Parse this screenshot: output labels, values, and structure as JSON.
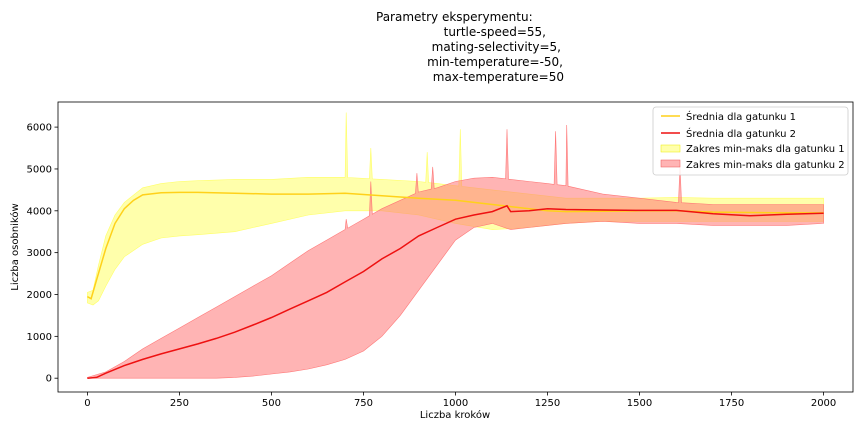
{
  "chart_data": {
    "type": "line",
    "title_lines": [
      "Parametry eksperymentu:",
      "turtle-speed=55,",
      "mating-selectivity=5,",
      "min-temperature=-50,",
      "max-temperature=50"
    ],
    "xlabel": "Liczba kroków",
    "ylabel": "Liczba osobników",
    "xlim": [
      -80,
      2080
    ],
    "ylim": [
      -330,
      6600
    ],
    "xticks": [
      0,
      250,
      500,
      750,
      1000,
      1250,
      1500,
      1750,
      2000
    ],
    "yticks": [
      0,
      1000,
      2000,
      3000,
      4000,
      5000,
      6000
    ],
    "grid": false,
    "legend_position": "top-right",
    "series": [
      {
        "name": "Średnia dla gatunku 1",
        "kind": "line",
        "color": "#ffd11a",
        "x": [
          0,
          10,
          25,
          50,
          75,
          100,
          125,
          150,
          200,
          250,
          300,
          400,
          500,
          600,
          700,
          800,
          900,
          1000,
          1100,
          1150,
          1200,
          1250,
          1300,
          1400,
          1500,
          1600,
          1700,
          1800,
          1900,
          2000
        ],
        "y": [
          1950,
          1900,
          2350,
          3100,
          3700,
          4050,
          4250,
          4380,
          4430,
          4440,
          4440,
          4420,
          4400,
          4400,
          4420,
          4360,
          4300,
          4250,
          4150,
          4100,
          4050,
          4000,
          3980,
          3990,
          4000,
          4000,
          3970,
          3960,
          3950,
          3950
        ]
      },
      {
        "name": "Średnia dla gatunku 2",
        "kind": "line",
        "color": "#ee1111",
        "x": [
          0,
          25,
          50,
          100,
          150,
          200,
          250,
          300,
          350,
          400,
          450,
          500,
          550,
          600,
          650,
          700,
          750,
          800,
          850,
          900,
          950,
          1000,
          1050,
          1100,
          1140,
          1150,
          1200,
          1250,
          1300,
          1400,
          1500,
          1600,
          1700,
          1800,
          1900,
          2000
        ],
        "y": [
          0,
          20,
          120,
          300,
          450,
          580,
          700,
          820,
          950,
          1100,
          1270,
          1450,
          1650,
          1850,
          2050,
          2300,
          2550,
          2850,
          3100,
          3400,
          3600,
          3800,
          3900,
          3980,
          4120,
          3980,
          4000,
          4050,
          4030,
          4020,
          4010,
          4010,
          3930,
          3880,
          3920,
          3940
        ]
      },
      {
        "name": "Zakres min-maks dla gatunku 1",
        "kind": "band",
        "color": "#ffff66",
        "x": [
          0,
          15,
          30,
          50,
          75,
          100,
          150,
          200,
          250,
          300,
          400,
          500,
          600,
          700,
          800,
          900,
          1000,
          1100,
          1200,
          1300,
          1400,
          1500,
          1600,
          1700,
          1800,
          1900,
          2000
        ],
        "ymin": [
          1800,
          1750,
          1850,
          2200,
          2600,
          2900,
          3200,
          3350,
          3400,
          3430,
          3500,
          3700,
          3900,
          4000,
          4000,
          3900,
          3700,
          3550,
          3600,
          3700,
          3750,
          3750,
          3750,
          3750,
          3750,
          3750,
          3750
        ],
        "ymax": [
          2050,
          2100,
          2700,
          3400,
          3900,
          4200,
          4550,
          4650,
          4700,
          4720,
          4750,
          4750,
          4800,
          4800,
          4750,
          4700,
          4600,
          4500,
          4400,
          4300,
          4300,
          4300,
          4320,
          4300,
          4300,
          4300,
          4300
        ]
      },
      {
        "name": "Zakres min-maks dla gatunku 2",
        "kind": "band",
        "color": "#ff7777",
        "x": [
          0,
          50,
          100,
          150,
          200,
          250,
          300,
          350,
          400,
          450,
          500,
          550,
          600,
          650,
          700,
          750,
          800,
          850,
          900,
          950,
          1000,
          1050,
          1100,
          1150,
          1200,
          1250,
          1300,
          1400,
          1500,
          1600,
          1700,
          1800,
          1900,
          2000
        ],
        "ymin": [
          0,
          0,
          0,
          0,
          0,
          0,
          0,
          0,
          20,
          50,
          100,
          150,
          220,
          320,
          450,
          650,
          1000,
          1500,
          2100,
          2700,
          3300,
          3600,
          3700,
          3550,
          3600,
          3650,
          3700,
          3750,
          3700,
          3700,
          3650,
          3650,
          3650,
          3700
        ],
        "ymax": [
          20,
          150,
          400,
          700,
          950,
          1200,
          1450,
          1700,
          1950,
          2200,
          2450,
          2750,
          3050,
          3300,
          3550,
          3800,
          4050,
          4250,
          4450,
          4550,
          4700,
          4780,
          4800,
          4750,
          4700,
          4650,
          4600,
          4400,
          4300,
          4200,
          4150,
          4150,
          4150,
          4150
        ]
      }
    ],
    "spikes": [
      {
        "series": "Zakres min-maks dla gatunku 1",
        "x": 703,
        "y": 6350
      },
      {
        "series": "Zakres min-maks dla gatunku 1",
        "x": 770,
        "y": 5500
      },
      {
        "series": "Zakres min-maks dla gatunku 1",
        "x": 923,
        "y": 5400
      },
      {
        "series": "Zakres min-maks dla gatunku 1",
        "x": 1013,
        "y": 5950
      },
      {
        "series": "Zakres min-maks dla gatunku 2",
        "x": 703,
        "y": 3800
      },
      {
        "series": "Zakres min-maks dla gatunku 2",
        "x": 770,
        "y": 4700
      },
      {
        "series": "Zakres min-maks dla gatunku 2",
        "x": 895,
        "y": 4900
      },
      {
        "series": "Zakres min-maks dla gatunku 2",
        "x": 938,
        "y": 5050
      },
      {
        "series": "Zakres min-maks dla gatunku 2",
        "x": 1140,
        "y": 5950
      },
      {
        "series": "Zakres min-maks dla gatunku 2",
        "x": 1272,
        "y": 5900
      },
      {
        "series": "Zakres min-maks dla gatunku 2",
        "x": 1302,
        "y": 6050
      },
      {
        "series": "Zakres min-maks dla gatunku 2",
        "x": 1610,
        "y": 5100
      }
    ]
  }
}
